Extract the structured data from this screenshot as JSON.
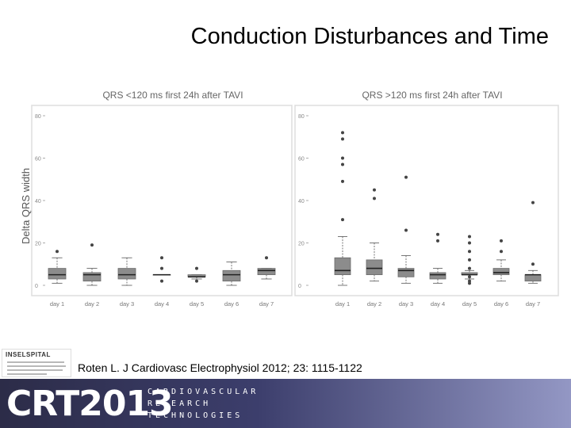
{
  "slide": {
    "title": "Conduction Disturbances and Time",
    "citation": "Roten L. J Cardiovasc Electrophysiol 2012; 23: 1115-1122"
  },
  "logo": {
    "name": "INSELSPITAL"
  },
  "footer": {
    "brand": "CRT2013",
    "lines": [
      "CARDIOVASCULAR",
      "RESEARCH",
      "TECHNOLOGIES"
    ]
  },
  "colors": {
    "box_fill": "#8c8c8c",
    "box_stroke": "#6a6a6a",
    "panel_border": "#dddddd",
    "axis_text": "#888888",
    "point": "#444444"
  },
  "chart_data": [
    {
      "type": "box",
      "title": "QRS <120 ms first 24h after TAVI",
      "ylabel": "Delta QRS width",
      "xlabel": "",
      "ylim": [
        0,
        80
      ],
      "yticks": [
        0,
        20,
        40,
        60,
        80
      ],
      "categories": [
        "day 1",
        "day 2",
        "day 3",
        "day 4",
        "day 5",
        "day 6",
        "day 7"
      ],
      "boxes": [
        {
          "q1": 3,
          "median": 5,
          "q3": 8,
          "lo": 1,
          "hi": 13,
          "outliers": [
            16
          ]
        },
        {
          "q1": 2,
          "median": 5,
          "q3": 6,
          "lo": 0,
          "hi": 8,
          "outliers": [
            19
          ]
        },
        {
          "q1": 3,
          "median": 5,
          "q3": 8,
          "lo": 0,
          "hi": 13,
          "outliers": []
        },
        {
          "q1": 5,
          "median": 5,
          "q3": 5,
          "lo": 5,
          "hi": 5,
          "outliers": [
            13,
            8,
            2
          ]
        },
        {
          "q1": 4,
          "median": 4,
          "q3": 5,
          "lo": 3,
          "hi": 5,
          "outliers": [
            8,
            2
          ]
        },
        {
          "q1": 2,
          "median": 5,
          "q3": 7,
          "lo": 0,
          "hi": 11,
          "outliers": []
        },
        {
          "q1": 5,
          "median": 7,
          "q3": 8,
          "lo": 3,
          "hi": 8,
          "outliers": [
            13
          ]
        }
      ]
    },
    {
      "type": "box",
      "title": "QRS >120 ms first 24h after TAVI",
      "ylabel": "",
      "xlabel": "",
      "ylim": [
        0,
        80
      ],
      "yticks": [
        0,
        20,
        40,
        60,
        80
      ],
      "categories": [
        "day 1",
        "day 2",
        "day 3",
        "day 4",
        "day 5",
        "day 6",
        "day 7"
      ],
      "boxes": [
        {
          "q1": 5,
          "median": 7,
          "q3": 13,
          "lo": 0,
          "hi": 23,
          "outliers": [
            72,
            69,
            60,
            57,
            49,
            31
          ]
        },
        {
          "q1": 5,
          "median": 8,
          "q3": 12,
          "lo": 2,
          "hi": 20,
          "outliers": [
            45,
            41
          ]
        },
        {
          "q1": 4,
          "median": 7,
          "q3": 8,
          "lo": 1,
          "hi": 14,
          "outliers": [
            51,
            26
          ]
        },
        {
          "q1": 3,
          "median": 5,
          "q3": 6,
          "lo": 1,
          "hi": 8,
          "outliers": [
            24,
            21
          ]
        },
        {
          "q1": 5,
          "median": 5,
          "q3": 6,
          "lo": 3,
          "hi": 7,
          "outliers": [
            23,
            20,
            16,
            12,
            8,
            4,
            2,
            1
          ]
        },
        {
          "q1": 5,
          "median": 6,
          "q3": 8,
          "lo": 2,
          "hi": 12,
          "outliers": [
            21,
            16
          ]
        },
        {
          "q1": 2,
          "median": 5,
          "q3": 5,
          "lo": 1,
          "hi": 7,
          "outliers": [
            39,
            10
          ]
        }
      ]
    }
  ]
}
